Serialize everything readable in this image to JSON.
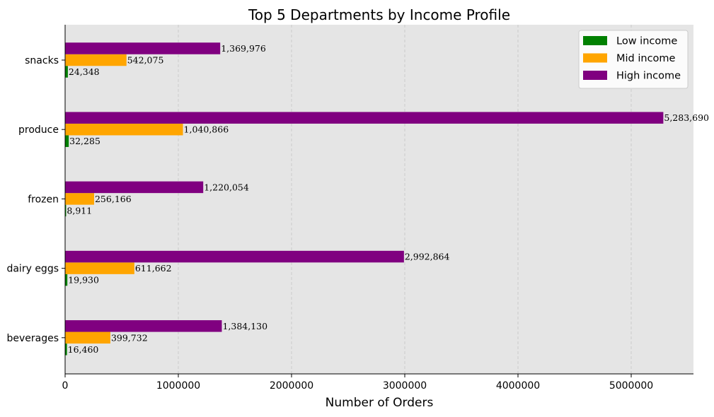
{
  "chart_data": {
    "type": "bar",
    "orientation": "horizontal",
    "title": "Top 5 Departments by Income Profile",
    "xlabel": "Number of Orders",
    "ylabel": "",
    "xlim": [
      0,
      5550000
    ],
    "xticks": [
      0,
      1000000,
      2000000,
      3000000,
      4000000,
      5000000
    ],
    "xtick_labels": [
      "0",
      "1000000",
      "2000000",
      "3000000",
      "4000000",
      "5000000"
    ],
    "categories": [
      "snacks",
      "produce",
      "frozen",
      "dairy eggs",
      "beverages"
    ],
    "series": [
      {
        "name": "Low income",
        "color": "#008000",
        "values": [
          24348,
          32285,
          8911,
          19930,
          16460
        ],
        "labels": [
          "24,348",
          "32,285",
          "8,911",
          "19,930",
          "16,460"
        ]
      },
      {
        "name": "Mid income",
        "color": "#FFA500",
        "values": [
          542075,
          1040866,
          256166,
          611662,
          399732
        ],
        "labels": [
          "542,075",
          "1,040,866",
          "256,166",
          "611,662",
          "399,732"
        ]
      },
      {
        "name": "High income",
        "color": "#800080",
        "values": [
          1369976,
          5283690,
          1220054,
          2992864,
          1384130
        ],
        "labels": [
          "1,369,976",
          "5,283,690",
          "1,220,054",
          "2,992,864",
          "1,384,130"
        ]
      }
    ],
    "grid": "x-dashed",
    "legend": "top-right",
    "background": "#E5E5E5"
  }
}
